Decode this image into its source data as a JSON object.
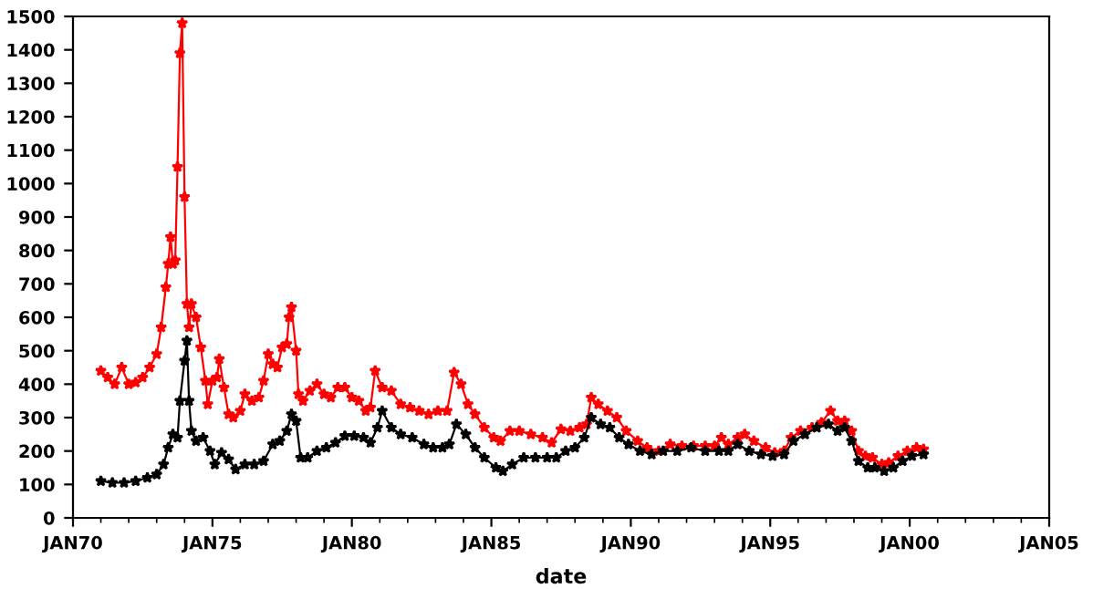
{
  "chart_data": {
    "type": "line",
    "xlabel": "date",
    "marker": "star",
    "line_style": "solid",
    "grid": false,
    "xlim": [
      "1970-01",
      "2005-01"
    ],
    "xticks": [
      {
        "value": "1970-01",
        "label": "JAN70"
      },
      {
        "value": "1975-01",
        "label": "JAN75"
      },
      {
        "value": "1980-01",
        "label": "JAN80"
      },
      {
        "value": "1985-01",
        "label": "JAN85"
      },
      {
        "value": "1990-01",
        "label": "JAN90"
      },
      {
        "value": "1995-01",
        "label": "JAN95"
      },
      {
        "value": "2000-01",
        "label": "JAN00"
      },
      {
        "value": "2005-01",
        "label": "JAN05"
      }
    ],
    "ylim": [
      0,
      1500
    ],
    "yticks": [
      0,
      100,
      200,
      300,
      400,
      500,
      600,
      700,
      800,
      900,
      1000,
      1100,
      1200,
      1300,
      1400,
      1500
    ],
    "series": [
      {
        "color": "#ff0000",
        "x": [
          "1971-01",
          "1971-04",
          "1971-07",
          "1971-10",
          "1972-01",
          "1972-04",
          "1972-07",
          "1972-10",
          "1973-01",
          "1973-03",
          "1973-05",
          "1973-06",
          "1973-07",
          "1973-08",
          "1973-09",
          "1973-10",
          "1973-11",
          "1973-12",
          "1974-01",
          "1974-02",
          "1974-03",
          "1974-04",
          "1974-06",
          "1974-08",
          "1974-10",
          "1974-11",
          "1975-01",
          "1975-03",
          "1975-04",
          "1975-06",
          "1975-08",
          "1975-10",
          "1976-01",
          "1976-03",
          "1976-06",
          "1976-09",
          "1976-11",
          "1977-01",
          "1977-03",
          "1977-05",
          "1977-07",
          "1977-09",
          "1977-10",
          "1977-11",
          "1978-01",
          "1978-02",
          "1978-04",
          "1978-07",
          "1978-10",
          "1979-01",
          "1979-04",
          "1979-07",
          "1979-10",
          "1980-01",
          "1980-04",
          "1980-07",
          "1980-09",
          "1980-11",
          "1981-02",
          "1981-06",
          "1981-10",
          "1982-02",
          "1982-06",
          "1982-10",
          "1983-02",
          "1983-06",
          "1983-09",
          "1983-12",
          "1984-03",
          "1984-06",
          "1984-10",
          "1985-02",
          "1985-05",
          "1985-09",
          "1986-01",
          "1986-06",
          "1986-11",
          "1987-03",
          "1987-07",
          "1987-11",
          "1988-03",
          "1988-06",
          "1988-08",
          "1988-11",
          "1989-03",
          "1989-07",
          "1989-11",
          "1990-04",
          "1990-08",
          "1991-01",
          "1991-06",
          "1991-11",
          "1992-04",
          "1992-09",
          "1993-01",
          "1993-04",
          "1993-07",
          "1993-11",
          "1994-02",
          "1994-06",
          "1994-11",
          "1995-03",
          "1995-07",
          "1995-10",
          "1996-02",
          "1996-07",
          "1996-11",
          "1997-03",
          "1997-06",
          "1997-09",
          "1997-12",
          "1998-03",
          "1998-06",
          "1998-09",
          "1999-01",
          "1999-04",
          "1999-08",
          "1999-12",
          "2000-04",
          "2000-07"
        ],
        "values": [
          440,
          420,
          400,
          450,
          400,
          405,
          420,
          450,
          490,
          570,
          690,
          760,
          840,
          760,
          770,
          1050,
          1390,
          1480,
          960,
          640,
          570,
          640,
          600,
          510,
          410,
          340,
          410,
          420,
          475,
          390,
          310,
          300,
          320,
          370,
          350,
          360,
          410,
          490,
          460,
          450,
          510,
          520,
          600,
          630,
          500,
          370,
          350,
          380,
          400,
          370,
          360,
          390,
          390,
          360,
          350,
          320,
          330,
          440,
          390,
          380,
          340,
          330,
          320,
          310,
          320,
          320,
          435,
          400,
          340,
          310,
          270,
          240,
          230,
          260,
          260,
          250,
          240,
          225,
          265,
          260,
          270,
          280,
          360,
          340,
          320,
          300,
          260,
          230,
          210,
          200,
          220,
          215,
          215,
          215,
          215,
          240,
          220,
          240,
          250,
          230,
          210,
          195,
          200,
          240,
          260,
          270,
          285,
          320,
          290,
          290,
          260,
          200,
          185,
          180,
          160,
          165,
          185,
          200,
          210,
          205
        ]
      },
      {
        "color": "#000000",
        "x": [
          "1971-01",
          "1971-06",
          "1971-11",
          "1972-04",
          "1972-09",
          "1973-01",
          "1973-04",
          "1973-06",
          "1973-08",
          "1973-10",
          "1973-11",
          "1974-01",
          "1974-02",
          "1974-03",
          "1974-04",
          "1974-06",
          "1974-09",
          "1974-12",
          "1975-02",
          "1975-05",
          "1975-08",
          "1975-11",
          "1976-03",
          "1976-07",
          "1976-11",
          "1977-03",
          "1977-06",
          "1977-09",
          "1977-11",
          "1978-01",
          "1978-03",
          "1978-06",
          "1978-10",
          "1979-02",
          "1979-06",
          "1979-10",
          "1980-02",
          "1980-06",
          "1980-09",
          "1980-12",
          "1981-02",
          "1981-06",
          "1981-10",
          "1982-03",
          "1982-08",
          "1982-12",
          "1983-04",
          "1983-07",
          "1983-10",
          "1984-02",
          "1984-06",
          "1984-10",
          "1985-03",
          "1985-06",
          "1985-10",
          "1986-03",
          "1986-08",
          "1987-01",
          "1987-05",
          "1987-09",
          "1988-01",
          "1988-05",
          "1988-08",
          "1988-12",
          "1989-04",
          "1989-08",
          "1989-12",
          "1990-05",
          "1990-10",
          "1991-03",
          "1991-09",
          "1992-03",
          "1992-09",
          "1993-03",
          "1993-07",
          "1993-11",
          "1994-04",
          "1994-09",
          "1995-02",
          "1995-07",
          "1995-11",
          "1996-04",
          "1996-09",
          "1997-02",
          "1997-06",
          "1997-09",
          "1997-12",
          "1998-03",
          "1998-07",
          "1998-10",
          "1999-02",
          "1999-06",
          "1999-10",
          "2000-02",
          "2000-07"
        ],
        "values": [
          110,
          105,
          105,
          110,
          120,
          130,
          160,
          210,
          250,
          240,
          350,
          470,
          530,
          350,
          260,
          230,
          240,
          200,
          160,
          195,
          175,
          145,
          160,
          160,
          170,
          220,
          230,
          260,
          310,
          290,
          180,
          180,
          200,
          210,
          225,
          245,
          245,
          240,
          225,
          270,
          320,
          270,
          250,
          240,
          220,
          210,
          210,
          220,
          280,
          250,
          210,
          180,
          150,
          140,
          160,
          180,
          180,
          180,
          180,
          200,
          210,
          240,
          300,
          280,
          270,
          240,
          220,
          200,
          190,
          200,
          200,
          210,
          200,
          200,
          200,
          220,
          200,
          190,
          185,
          190,
          230,
          250,
          270,
          280,
          260,
          270,
          230,
          170,
          150,
          150,
          140,
          150,
          170,
          185,
          190
        ]
      }
    ]
  }
}
